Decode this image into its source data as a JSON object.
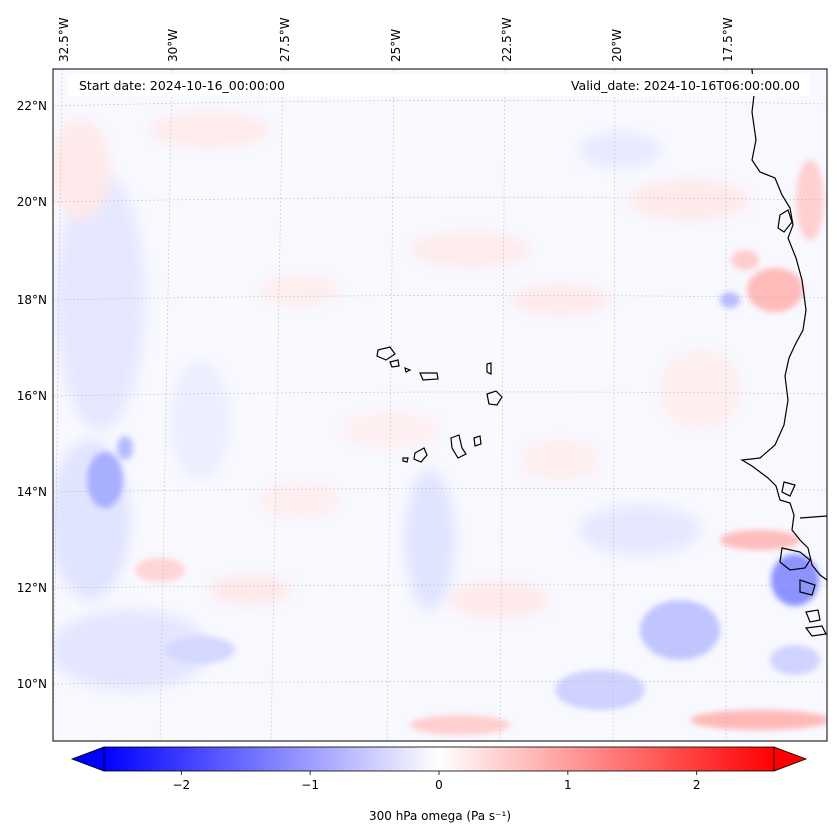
{
  "header": {
    "start_date": "Start date: 2024-10-16_00:00:00",
    "valid_date": "Valid_date: 2024-10-16T06:00:00.00"
  },
  "longitude_labels": [
    "32.5°W",
    "30°W",
    "27.5°W",
    "25°W",
    "22.5°W",
    "20°W",
    "17.5°W"
  ],
  "latitude_labels": [
    "22°N",
    "20°N",
    "18°N",
    "16°N",
    "14°N",
    "12°N",
    "10°N"
  ],
  "colorbar": {
    "label": "300 hPa omega (Pa s⁻¹)",
    "ticks": [
      "−2",
      "−1",
      "0",
      "1",
      "2"
    ],
    "tick_values": [
      -2,
      -1,
      0,
      1,
      2
    ],
    "range": [
      -2.6,
      2.6
    ],
    "colors": {
      "negative": "#0000ff",
      "zero": "#ffffff",
      "positive": "#ff0000"
    }
  },
  "chart_data": {
    "type": "heatmap",
    "variable": "300 hPa omega",
    "units": "Pa s⁻¹",
    "lon_range": [
      -33,
      -15
    ],
    "lat_range": [
      9,
      22.8
    ],
    "projection": "lambert",
    "gridlines": true,
    "features": [
      "Cape Verde islands",
      "West African coastline"
    ],
    "highlights": [
      {
        "sign": "negative",
        "lon": -31.5,
        "lat": 14.2,
        "value": -1.2
      },
      {
        "sign": "negative",
        "lon": -19.5,
        "lat": 11.0,
        "value": -1.0
      },
      {
        "sign": "negative",
        "lon": -15.8,
        "lat": 11.8,
        "value": -1.1
      },
      {
        "sign": "positive",
        "lon": -16.5,
        "lat": 18.2,
        "value": 1.1
      },
      {
        "sign": "positive",
        "lon": -17.0,
        "lat": 9.4,
        "value": 1.0
      },
      {
        "sign": "positive",
        "lon": -22.8,
        "lat": 9.3,
        "value": 0.8
      },
      {
        "sign": "positive",
        "lon": -16.0,
        "lat": 12.3,
        "value": 0.9
      }
    ]
  }
}
